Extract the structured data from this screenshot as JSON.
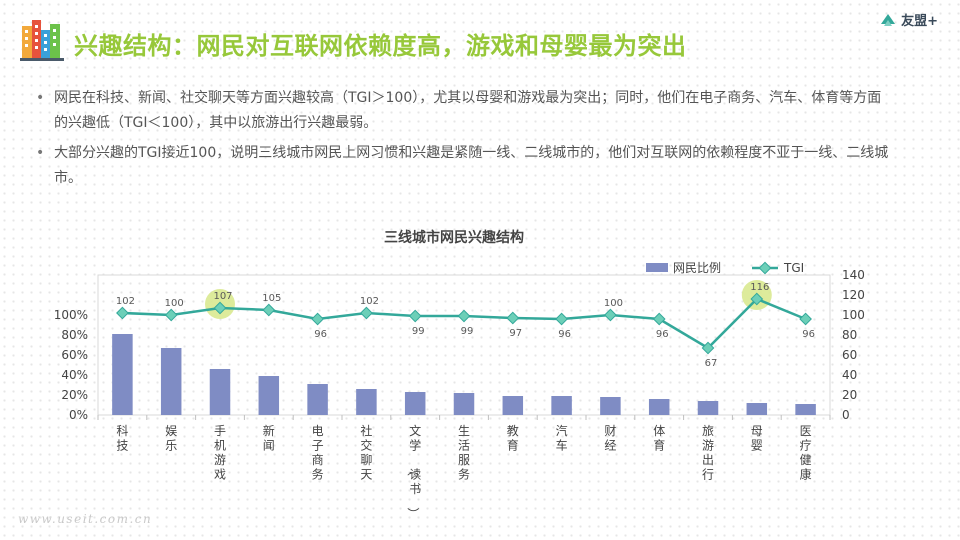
{
  "slide": {
    "title": "兴趣结构：网民对互联网依赖度高，游戏和母婴最为突出",
    "brand": "友盟+",
    "watermark": "www.useit.com.cn",
    "bullets": [
      "网民在科技、新闻、社交聊天等方面兴趣较高（TGI＞100），尤其以母婴和游戏最为突出；同时，他们在电子商务、汽车、体育等方面的兴趣低（TGI＜100），其中以旅游出行兴趣最弱。",
      "大部分兴趣的TGI接近100，说明三线城市网民上网习惯和兴趣是紧随一线、二线城市的，他们对互联网的依赖程度不亚于一线、二线城市。"
    ]
  },
  "colors": {
    "title": "#97c83a",
    "bar": "#7f8cc4",
    "line": "#33a89a",
    "highlight": "#d7e88a"
  },
  "chart_data": {
    "type": "bar+line",
    "title": "三线城市网民兴趣结构",
    "categories": [
      "科技",
      "娱乐",
      "手机游戏",
      "新闻",
      "电子商务",
      "社交聊天",
      "文学（读书）",
      "生活服务",
      "教育",
      "汽车",
      "财经",
      "体育",
      "旅游出行",
      "母婴",
      "医疗健康"
    ],
    "series": [
      {
        "name": "网民比例",
        "type": "bar",
        "axis": "left",
        "values": [
          81,
          67,
          46,
          39,
          31,
          26,
          23,
          22,
          19,
          19,
          18,
          16,
          14,
          12,
          11
        ]
      },
      {
        "name": "TGI",
        "type": "line",
        "axis": "right",
        "values": [
          102,
          100,
          107,
          105,
          96,
          102,
          99,
          99,
          97,
          96,
          100,
          96,
          67,
          116,
          96
        ]
      }
    ],
    "left_axis": {
      "ticks": [
        "0%",
        "20%",
        "40%",
        "60%",
        "80%",
        "100%"
      ],
      "range": [
        0,
        140
      ]
    },
    "right_axis": {
      "ticks": [
        "0",
        "20",
        "40",
        "60",
        "80",
        "100",
        "120",
        "140"
      ],
      "range": [
        0,
        140
      ]
    },
    "highlighted_categories": [
      "手机游戏",
      "母婴"
    ],
    "legend_position": "top-right",
    "grid": false
  }
}
